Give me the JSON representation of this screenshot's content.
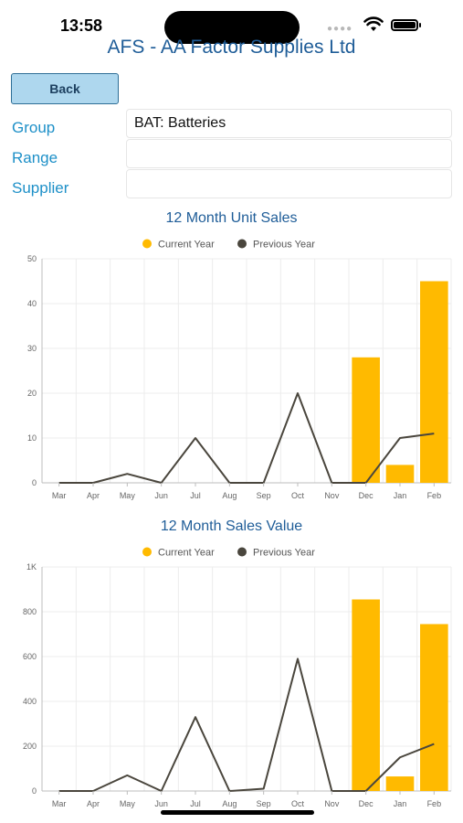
{
  "status_bar": {
    "time": "13:58"
  },
  "header": {
    "title": "AFS - AA Factor Supplies Ltd"
  },
  "back_button": {
    "label": "Back"
  },
  "form": {
    "group_label": "Group",
    "group_value": "BAT: Batteries",
    "range_label": "Range",
    "range_value": "",
    "supplier_label": "Supplier",
    "supplier_value": ""
  },
  "colors": {
    "current_year": "#FFBA00",
    "previous_year": "#4A463D",
    "accent": "#1F5D98",
    "label": "#1E90C8"
  },
  "chart_data": [
    {
      "type": "bar",
      "title": "12 Month Unit Sales",
      "categories": [
        "Mar",
        "Apr",
        "May",
        "Jun",
        "Jul",
        "Aug",
        "Sep",
        "Oct",
        "Nov",
        "Dec",
        "Jan",
        "Feb"
      ],
      "series": [
        {
          "name": "Current Year",
          "type": "bar",
          "values": [
            0,
            0,
            0,
            0,
            0,
            0,
            0,
            0,
            0,
            28,
            4,
            45
          ]
        },
        {
          "name": "Previous Year",
          "type": "line",
          "values": [
            0,
            0,
            2,
            0,
            10,
            0,
            0,
            20,
            0,
            0,
            10,
            11
          ]
        }
      ],
      "yticks": [
        0,
        10,
        20,
        30,
        40,
        50
      ],
      "ytick_labels": [
        "0",
        "10",
        "20",
        "30",
        "40",
        "50"
      ],
      "ylim": [
        0,
        50
      ],
      "legend": "top-center",
      "grid": true
    },
    {
      "type": "bar",
      "title": "12 Month Sales Value",
      "categories": [
        "Mar",
        "Apr",
        "May",
        "Jun",
        "Jul",
        "Aug",
        "Sep",
        "Oct",
        "Nov",
        "Dec",
        "Jan",
        "Feb"
      ],
      "series": [
        {
          "name": "Current Year",
          "type": "bar",
          "values": [
            0,
            0,
            0,
            0,
            0,
            0,
            0,
            0,
            0,
            855,
            65,
            745
          ]
        },
        {
          "name": "Previous Year",
          "type": "line",
          "values": [
            0,
            0,
            70,
            0,
            330,
            0,
            10,
            590,
            0,
            0,
            150,
            210
          ]
        }
      ],
      "yticks": [
        0,
        200,
        400,
        600,
        800,
        1000
      ],
      "ytick_labels": [
        "0",
        "200",
        "400",
        "600",
        "800",
        "1K"
      ],
      "ylim": [
        0,
        1000
      ],
      "legend": "top-center",
      "grid": true
    }
  ]
}
